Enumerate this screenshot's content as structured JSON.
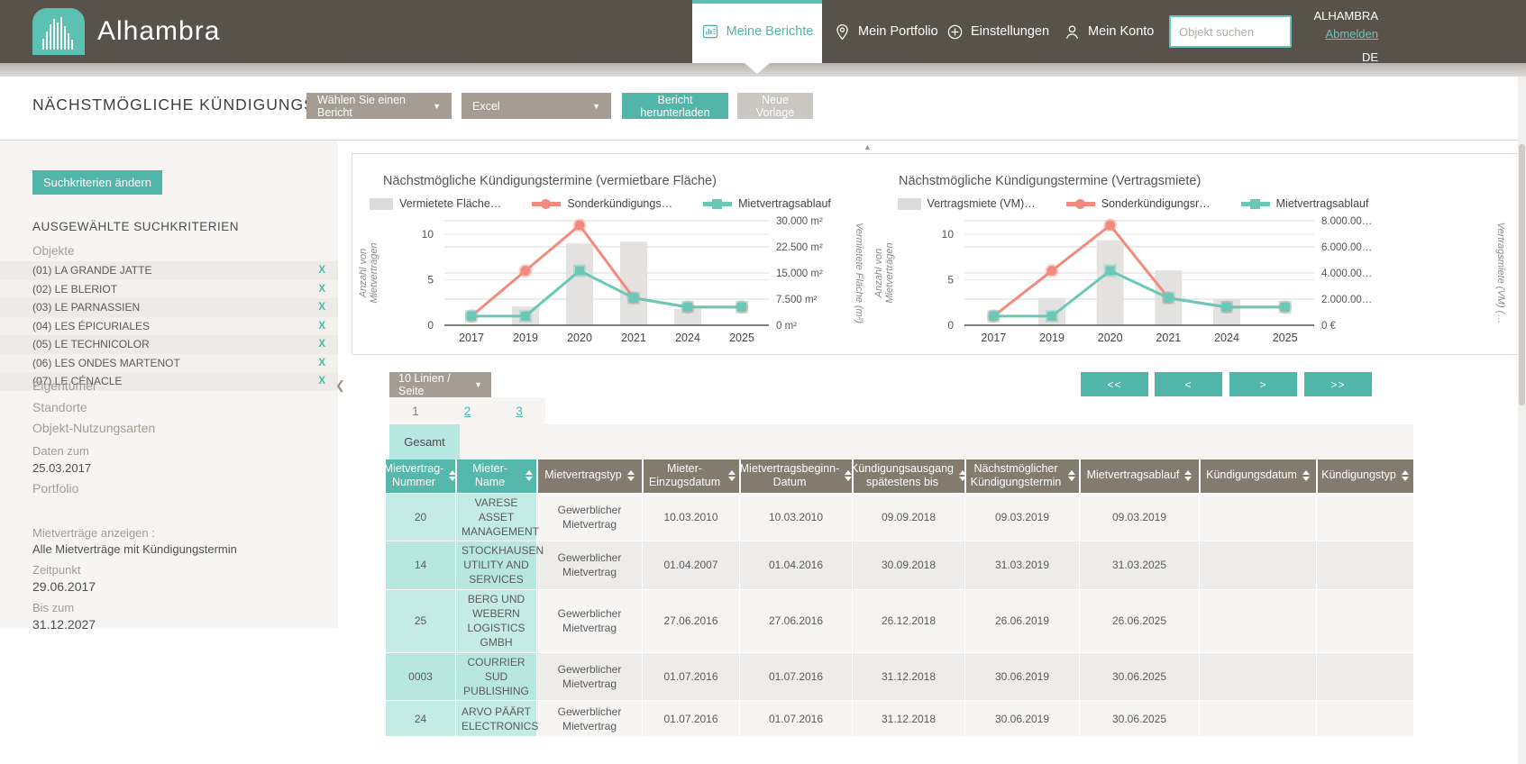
{
  "brand": {
    "name": "Alhambra",
    "account": "ALHAMBRA",
    "logout": "Abmelden",
    "lang": "DE"
  },
  "nav": {
    "items": [
      {
        "label": "Meine Berichte",
        "active": true
      },
      {
        "label": "Mein Portfolio",
        "active": false
      },
      {
        "label": "Einstellungen",
        "active": false
      },
      {
        "label": "Mein Konto",
        "active": false
      }
    ],
    "search_placeholder": "Objekt suchen"
  },
  "toolbar": {
    "title": "NÄCHSTMÖGLICHE KÜNDIGUNGSTERMINE —",
    "report_select": "Wählen Sie einen Bericht",
    "format_select": "Excel",
    "download_label": "Bericht herunterladen",
    "new_template_label": "Neue Vorlage"
  },
  "sidebar": {
    "change_button": "Suchkriterien ändern",
    "heading": "AUSGEWÄHLTE SUCHKRITERIEN",
    "objects_label": "Objekte",
    "remove_symbol": "X",
    "objects": [
      "(01) LA GRANDE JATTE",
      "(02) LE BLERIOT",
      "(03) LE PARNASSIEN",
      "(04) LES ÉPICURIALES",
      "(05) LE TECHNICOLOR",
      "(06) LES ONDES MARTENOT",
      "(07) LE CÉNACLE"
    ],
    "filters": [
      "Eigentümer",
      "Standorte",
      "Objekt-Nutzungsarten"
    ],
    "date_label": "Daten zum",
    "date_value": "25.03.2017",
    "portfolio_label": "Portfolio",
    "leases_label": "Mietverträge anzeigen :",
    "leases_value": "Alle Mietverträge mit Kündigungstermin",
    "time_label": "Zeitpunkt",
    "time_value": "29.06.2017",
    "until_label": "Bis zum",
    "until_value": "31.12.2027"
  },
  "chart_data": [
    {
      "type": "bar",
      "title": "Nächstmögliche Kündigungstermine (vermietbare Fläche)",
      "categories": [
        "2017",
        "2019",
        "2020",
        "2021",
        "2024",
        "2025"
      ],
      "series": [
        {
          "name": "Vermietete Fläche…",
          "kind": "bar",
          "axis": "right",
          "color": "#e3e2e0",
          "values": [
            0,
            5400,
            23500,
            24000,
            4700,
            0
          ]
        },
        {
          "name": "Sonderkündigungs…",
          "kind": "line",
          "axis": "left",
          "color": "#f28b7d",
          "marker": "circle",
          "values": [
            1,
            6,
            11,
            3,
            2,
            2
          ]
        },
        {
          "name": "Mietvertragsablauf",
          "kind": "line",
          "axis": "left",
          "color": "#6cc8b6",
          "marker": "square",
          "values": [
            1,
            1,
            6,
            3,
            2,
            2
          ]
        }
      ],
      "left_axis": {
        "label_line1": "Anzahl von",
        "label_line2": "Mietverträgen",
        "ticks": [
          0,
          5,
          10
        ],
        "max": 11.5
      },
      "right_axis": {
        "label": "Vermietete Fläche (m²)",
        "max": 30000,
        "tick_labels": [
          "0 m²",
          "7.500 m²",
          "15.000 m²",
          "22.500 m²",
          "30.000 m²"
        ]
      },
      "legend_position": "top",
      "grid": true
    },
    {
      "type": "bar",
      "title": "Nächstmögliche Kündigungstermine (Vertragsmiete)",
      "categories": [
        "2017",
        "2019",
        "2020",
        "2021",
        "2024",
        "2025"
      ],
      "series": [
        {
          "name": "Vertragsmiete (VM)…",
          "kind": "bar",
          "axis": "right",
          "color": "#e3e2e0",
          "values": [
            0,
            2100000,
            6500000,
            4200000,
            2000000,
            0
          ]
        },
        {
          "name": "Sonderkündigungsr…",
          "kind": "line",
          "axis": "left",
          "color": "#f28b7d",
          "marker": "circle",
          "values": [
            1,
            6,
            11,
            3,
            2,
            2
          ]
        },
        {
          "name": "Mietvertragsablauf",
          "kind": "line",
          "axis": "left",
          "color": "#6cc8b6",
          "marker": "square",
          "values": [
            1,
            1,
            6,
            3,
            2,
            2
          ]
        }
      ],
      "left_axis": {
        "label_line1": "Anzahl von",
        "label_line2": "Mietverträgen",
        "ticks": [
          0,
          5,
          10
        ],
        "max": 11.5
      },
      "right_axis": {
        "label": "Vertragsmiete (VM) (…",
        "max": 8000000,
        "tick_labels": [
          "0 €",
          "2.000.00…",
          "4.000.00…",
          "6.000.00…",
          "8.000.00…"
        ]
      },
      "legend_position": "top",
      "grid": true
    }
  ],
  "pagination": {
    "page_size": "10 Linien / Seite",
    "pages": [
      "1",
      "2",
      "3"
    ],
    "current_page": "1",
    "first": "<<",
    "prev": "<",
    "next": ">",
    "last": ">>"
  },
  "table": {
    "total_tab": "Gesamt",
    "columns": [
      "Mietvertrag-Nummer",
      "Mieter-Name",
      "Mietvertragstyp",
      "Mieter-Einzugsdatum",
      "Mietvertragsbeginn-Datum",
      "Kündigungsausgang spätestens bis",
      "Nächstmöglicher Kündigungstermin",
      "Mietvertragsablauf",
      "Kündigungsdatum",
      "Kündigungstyp"
    ],
    "rows": [
      {
        "cells": [
          "20",
          "VARESE ASSET MANAGEMENT",
          "Gewerblicher Mietvertrag",
          "10.03.2010",
          "10.03.2010",
          "09.09.2018",
          "09.03.2019",
          "09.03.2019",
          "",
          ""
        ]
      },
      {
        "cells": [
          "14",
          "STOCKHAUSEN UTILITY AND SERVICES",
          "Gewerblicher Mietvertrag",
          "01.04.2007",
          "01.04.2016",
          "30.09.2018",
          "31.03.2019",
          "31.03.2025",
          "",
          ""
        ]
      },
      {
        "cells": [
          "25",
          "BERG UND WEBERN LOGISTICS GMBH",
          "Gewerblicher Mietvertrag",
          "27.06.2016",
          "27.06.2016",
          "26.12.2018",
          "26.06.2019",
          "26.06.2025",
          "",
          ""
        ]
      },
      {
        "cells": [
          "0003",
          "COURRIER SUD PUBLISHING",
          "Gewerblicher Mietvertrag",
          "01.07.2016",
          "01.07.2016",
          "31.12.2018",
          "30.06.2019",
          "30.06.2025",
          "",
          ""
        ]
      },
      {
        "cells": [
          "24",
          "ARVO PÄÄRT ELECTRONICS",
          "Gewerblicher Mietvertrag",
          "01.07.2016",
          "01.07.2016",
          "31.12.2018",
          "30.06.2019",
          "30.06.2025",
          "",
          ""
        ]
      }
    ]
  }
}
